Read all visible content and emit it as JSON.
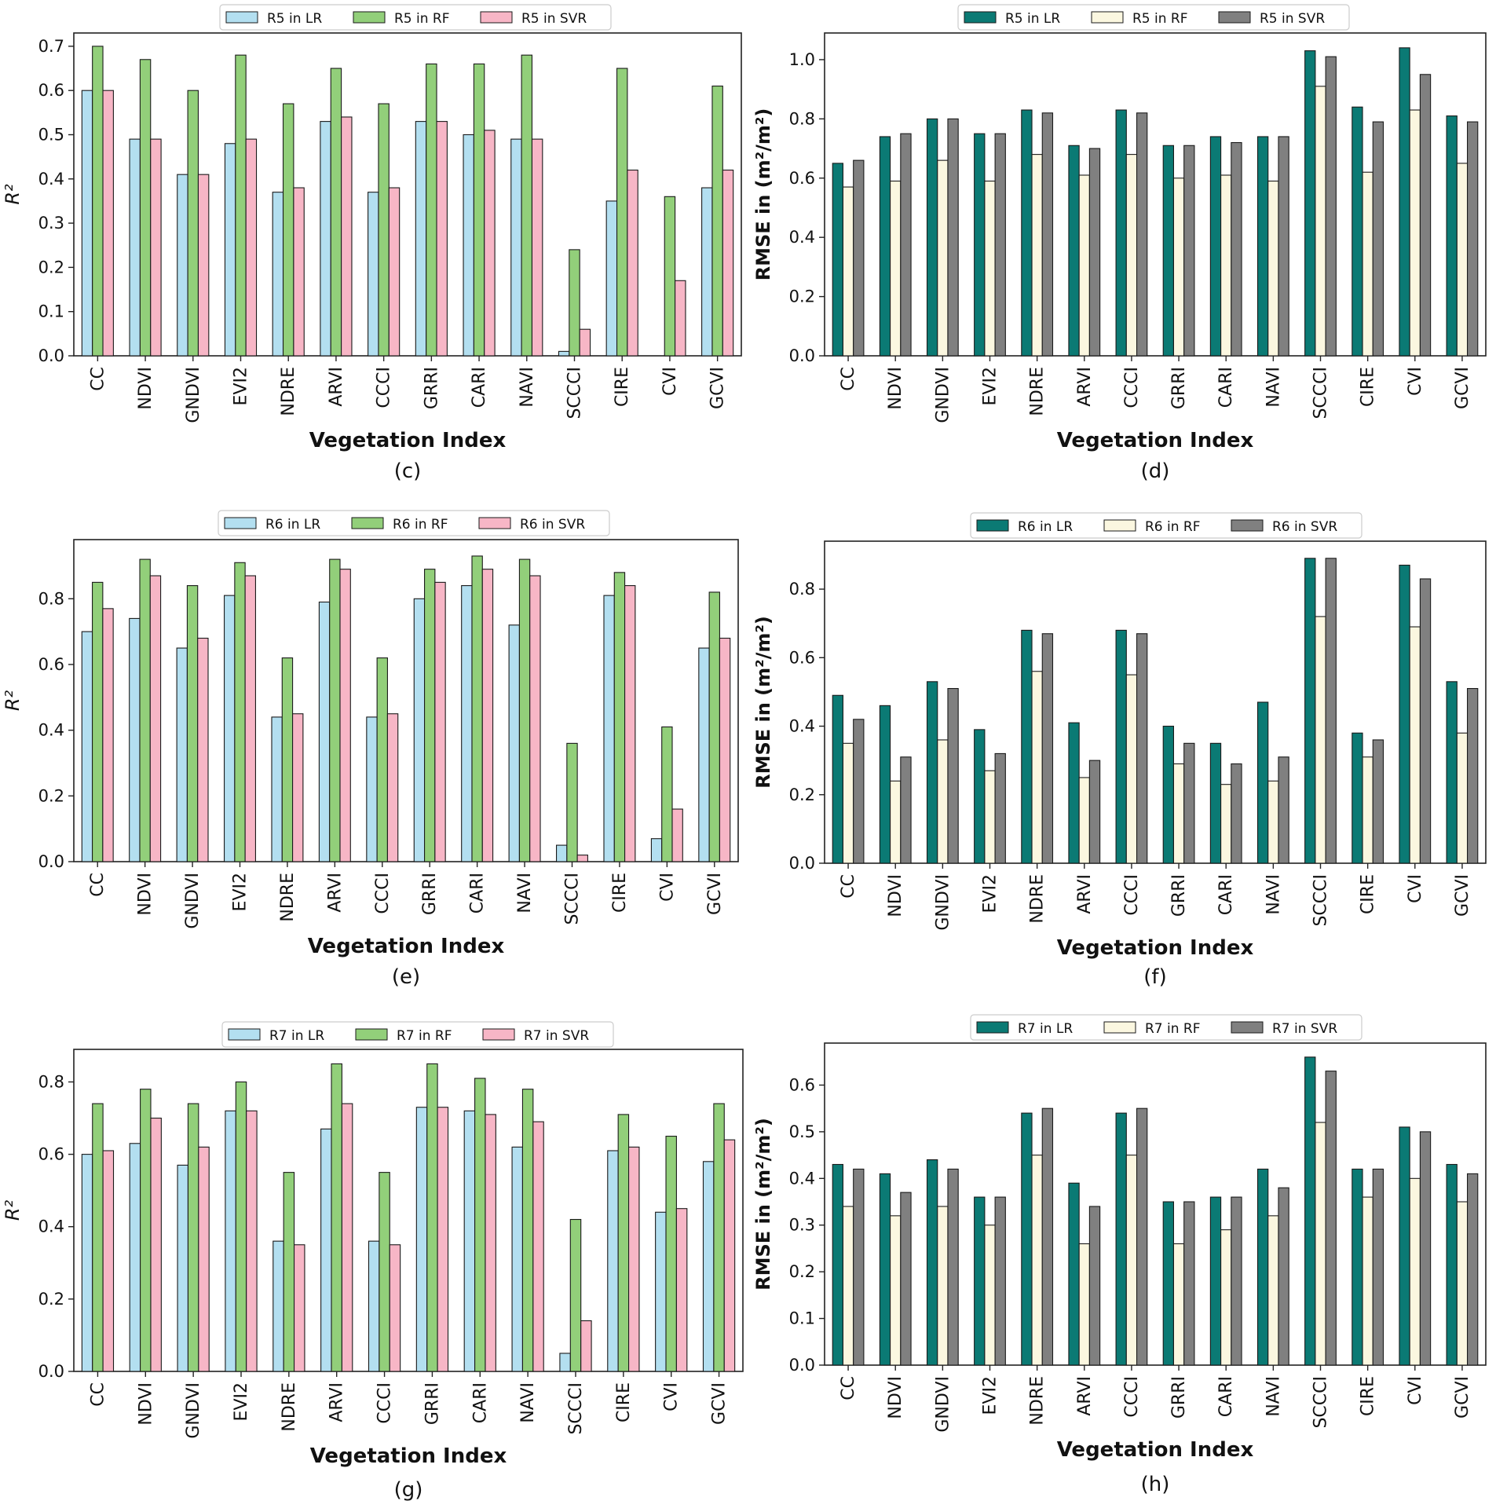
{
  "colors": {
    "r2_LR": "#b3dff0",
    "r2_RF": "#92cf7a",
    "r2_SVR": "#f7b6c6",
    "rmse_LR": "#0b7a74",
    "rmse_RF": "#fbf7e0",
    "rmse_SVR": "#808080"
  },
  "chart_data": [
    {
      "type": "bar",
      "panel_label": "(c)",
      "categories": [
        "CC",
        "NDVI",
        "GNDVI",
        "EVI2",
        "NDRE",
        "ARVI",
        "CCCI",
        "GRRI",
        "CARI",
        "NAVI",
        "SCCCI",
        "CIRE",
        "CVI",
        "GCVI"
      ],
      "series": [
        {
          "name": "R5 in LR",
          "values": [
            0.6,
            0.49,
            0.41,
            0.48,
            0.37,
            0.53,
            0.37,
            0.53,
            0.5,
            0.49,
            0.01,
            0.35,
            0.0,
            0.38
          ]
        },
        {
          "name": "R5 in RF",
          "values": [
            0.7,
            0.67,
            0.6,
            0.68,
            0.57,
            0.65,
            0.57,
            0.66,
            0.66,
            0.68,
            0.24,
            0.65,
            0.36,
            0.61
          ]
        },
        {
          "name": "R5 in SVR",
          "values": [
            0.6,
            0.49,
            0.41,
            0.49,
            0.38,
            0.54,
            0.38,
            0.53,
            0.51,
            0.49,
            0.06,
            0.42,
            0.17,
            0.42
          ]
        }
      ],
      "xlabel": "Vegetation Index",
      "ylabel": "R²",
      "ylim": [
        0,
        0.73
      ],
      "yticks": [
        "0.0",
        "0.1",
        "0.2",
        "0.3",
        "0.4",
        "0.5",
        "0.6",
        "0.7"
      ],
      "ytick_values": [
        0,
        0.1,
        0.2,
        0.3,
        0.4,
        0.5,
        0.6,
        0.7
      ],
      "legend": "top-center"
    },
    {
      "type": "bar",
      "panel_label": "(d)",
      "categories": [
        "CC",
        "NDVI",
        "GNDVI",
        "EVI2",
        "NDRE",
        "ARVI",
        "CCCI",
        "GRRI",
        "CARI",
        "NAVI",
        "SCCCI",
        "CIRE",
        "CVI",
        "GCVI"
      ],
      "series": [
        {
          "name": "R5 in LR",
          "values": [
            0.65,
            0.74,
            0.8,
            0.75,
            0.83,
            0.71,
            0.83,
            0.71,
            0.74,
            0.74,
            1.03,
            0.84,
            1.04,
            0.81
          ]
        },
        {
          "name": "R5 in RF",
          "values": [
            0.57,
            0.59,
            0.66,
            0.59,
            0.68,
            0.61,
            0.68,
            0.6,
            0.61,
            0.59,
            0.91,
            0.62,
            0.83,
            0.65
          ]
        },
        {
          "name": "R5 in SVR",
          "values": [
            0.66,
            0.75,
            0.8,
            0.75,
            0.82,
            0.7,
            0.82,
            0.71,
            0.72,
            0.74,
            1.01,
            0.79,
            0.95,
            0.79
          ]
        }
      ],
      "xlabel": "Vegetation Index",
      "ylabel": "RMSE in (m²/m²)",
      "ylim": [
        0,
        1.09
      ],
      "yticks": [
        "0.0",
        "0.2",
        "0.4",
        "0.6",
        "0.8",
        "1.0"
      ],
      "ytick_values": [
        0,
        0.2,
        0.4,
        0.6,
        0.8,
        1.0
      ],
      "legend": "top-center"
    },
    {
      "type": "bar",
      "panel_label": "(e)",
      "categories": [
        "CC",
        "NDVI",
        "GNDVI",
        "EVI2",
        "NDRE",
        "ARVI",
        "CCCI",
        "GRRI",
        "CARI",
        "NAVI",
        "SCCCI",
        "CIRE",
        "CVI",
        "GCVI"
      ],
      "series": [
        {
          "name": "R6 in LR",
          "values": [
            0.7,
            0.74,
            0.65,
            0.81,
            0.44,
            0.79,
            0.44,
            0.8,
            0.84,
            0.72,
            0.05,
            0.81,
            0.07,
            0.65
          ]
        },
        {
          "name": "R6 in RF",
          "values": [
            0.85,
            0.92,
            0.84,
            0.91,
            0.62,
            0.92,
            0.62,
            0.89,
            0.93,
            0.92,
            0.36,
            0.88,
            0.41,
            0.82
          ]
        },
        {
          "name": "R6 in SVR",
          "values": [
            0.77,
            0.87,
            0.68,
            0.87,
            0.45,
            0.89,
            0.45,
            0.85,
            0.89,
            0.87,
            0.02,
            0.84,
            0.16,
            0.68
          ]
        }
      ],
      "xlabel": "Vegetation Index",
      "ylabel": "R²",
      "ylim": [
        0,
        0.98
      ],
      "yticks": [
        "0.0",
        "0.2",
        "0.4",
        "0.6",
        "0.8"
      ],
      "ytick_values": [
        0,
        0.2,
        0.4,
        0.6,
        0.8
      ],
      "legend": "top-center"
    },
    {
      "type": "bar",
      "panel_label": "(f)",
      "categories": [
        "CC",
        "NDVI",
        "GNDVI",
        "EVI2",
        "NDRE",
        "ARVI",
        "CCCI",
        "GRRI",
        "CARI",
        "NAVI",
        "SCCCI",
        "CIRE",
        "CVI",
        "GCVI"
      ],
      "series": [
        {
          "name": "R6 in LR",
          "values": [
            0.49,
            0.46,
            0.53,
            0.39,
            0.68,
            0.41,
            0.68,
            0.4,
            0.35,
            0.47,
            0.89,
            0.38,
            0.87,
            0.53
          ]
        },
        {
          "name": "R6 in RF",
          "values": [
            0.35,
            0.24,
            0.36,
            0.27,
            0.56,
            0.25,
            0.55,
            0.29,
            0.23,
            0.24,
            0.72,
            0.31,
            0.69,
            0.38
          ]
        },
        {
          "name": "R6 in SVR",
          "values": [
            0.42,
            0.31,
            0.51,
            0.32,
            0.67,
            0.3,
            0.67,
            0.35,
            0.29,
            0.31,
            0.89,
            0.36,
            0.83,
            0.51
          ]
        }
      ],
      "xlabel": "Vegetation Index",
      "ylabel": "RMSE in (m²/m²)",
      "ylim": [
        0,
        0.94
      ],
      "yticks": [
        "0.0",
        "0.2",
        "0.4",
        "0.6",
        "0.8"
      ],
      "ytick_values": [
        0,
        0.2,
        0.4,
        0.6,
        0.8
      ],
      "legend": "top-center"
    },
    {
      "type": "bar",
      "panel_label": "(g)",
      "categories": [
        "CC",
        "NDVI",
        "GNDVI",
        "EVI2",
        "NDRE",
        "ARVI",
        "CCCI",
        "GRRI",
        "CARI",
        "NAVI",
        "SCCCI",
        "CIRE",
        "CVI",
        "GCVI"
      ],
      "series": [
        {
          "name": "R7 in LR",
          "values": [
            0.6,
            0.63,
            0.57,
            0.72,
            0.36,
            0.67,
            0.36,
            0.73,
            0.72,
            0.62,
            0.05,
            0.61,
            0.44,
            0.58
          ]
        },
        {
          "name": "R7 in RF",
          "values": [
            0.74,
            0.78,
            0.74,
            0.8,
            0.55,
            0.85,
            0.55,
            0.85,
            0.81,
            0.78,
            0.42,
            0.71,
            0.65,
            0.74
          ]
        },
        {
          "name": "R7 in SVR",
          "values": [
            0.61,
            0.7,
            0.62,
            0.72,
            0.35,
            0.74,
            0.35,
            0.73,
            0.71,
            0.69,
            0.14,
            0.62,
            0.45,
            0.64
          ]
        }
      ],
      "xlabel": "Vegetation Index",
      "ylabel": "R²",
      "ylim": [
        0,
        0.89
      ],
      "yticks": [
        "0.0",
        "0.2",
        "0.4",
        "0.6",
        "0.8"
      ],
      "ytick_values": [
        0,
        0.2,
        0.4,
        0.6,
        0.8
      ],
      "legend": "top-center"
    },
    {
      "type": "bar",
      "panel_label": "(h)",
      "categories": [
        "CC",
        "NDVI",
        "GNDVI",
        "EVI2",
        "NDRE",
        "ARVI",
        "CCCI",
        "GRRI",
        "CARI",
        "NAVI",
        "SCCCI",
        "CIRE",
        "CVI",
        "GCVI"
      ],
      "series": [
        {
          "name": "R7 in LR",
          "values": [
            0.43,
            0.41,
            0.44,
            0.36,
            0.54,
            0.39,
            0.54,
            0.35,
            0.36,
            0.42,
            0.66,
            0.42,
            0.51,
            0.43
          ]
        },
        {
          "name": "R7 in RF",
          "values": [
            0.34,
            0.32,
            0.34,
            0.3,
            0.45,
            0.26,
            0.45,
            0.26,
            0.29,
            0.32,
            0.52,
            0.36,
            0.4,
            0.35
          ]
        },
        {
          "name": "R7 in SVR",
          "values": [
            0.42,
            0.37,
            0.42,
            0.36,
            0.55,
            0.34,
            0.55,
            0.35,
            0.36,
            0.38,
            0.63,
            0.42,
            0.5,
            0.41
          ]
        }
      ],
      "xlabel": "Vegetation Index",
      "ylabel": "RMSE in (m²/m²)",
      "ylim": [
        0,
        0.69
      ],
      "yticks": [
        "0.0",
        "0.1",
        "0.2",
        "0.3",
        "0.4",
        "0.5",
        "0.6"
      ],
      "ytick_values": [
        0,
        0.1,
        0.2,
        0.3,
        0.4,
        0.5,
        0.6
      ],
      "legend": "top-center"
    }
  ]
}
